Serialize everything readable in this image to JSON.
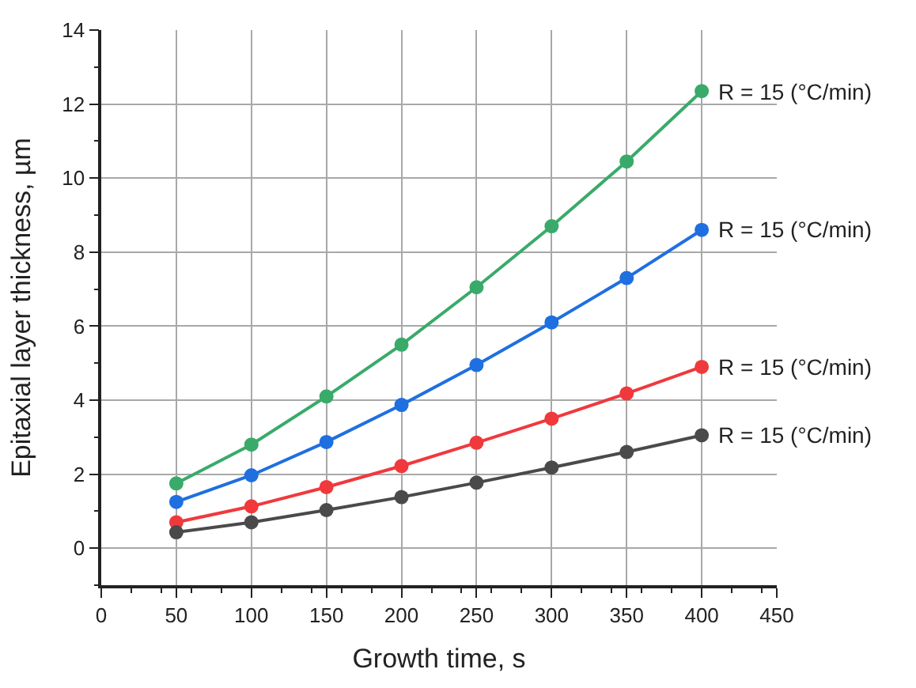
{
  "chart_data": {
    "type": "line",
    "xlabel": "Growth time, s",
    "ylabel": "Epitaxial layer thickness, µm",
    "x": [
      50,
      100,
      150,
      200,
      250,
      300,
      350,
      400
    ],
    "series": [
      {
        "name": "R = 15 (°C/min)",
        "color": "#3aaa6a",
        "values": [
          1.75,
          2.8,
          4.1,
          5.5,
          7.05,
          8.7,
          10.45,
          12.35
        ]
      },
      {
        "name": "R = 15 (°C/min)",
        "color": "#1f6fe0",
        "values": [
          1.25,
          1.97,
          2.87,
          3.87,
          4.95,
          6.1,
          7.3,
          8.6
        ]
      },
      {
        "name": "R = 15 (°C/min)",
        "color": "#f0393c",
        "values": [
          0.7,
          1.13,
          1.65,
          2.22,
          2.85,
          3.5,
          4.18,
          4.9
        ]
      },
      {
        "name": "R = 15 (°C/min)",
        "color": "#4a4a4a",
        "values": [
          0.43,
          0.7,
          1.03,
          1.38,
          1.77,
          2.18,
          2.6,
          3.05
        ]
      }
    ],
    "xlim": [
      0,
      450
    ],
    "xticks": [
      0,
      50,
      100,
      150,
      200,
      250,
      300,
      350,
      400,
      450
    ],
    "ylim": [
      -1,
      14
    ],
    "yticks": [
      0,
      2,
      4,
      6,
      8,
      10,
      12,
      14
    ],
    "grid": true,
    "legend": false,
    "marker": "circle",
    "line_style": "solid"
  }
}
